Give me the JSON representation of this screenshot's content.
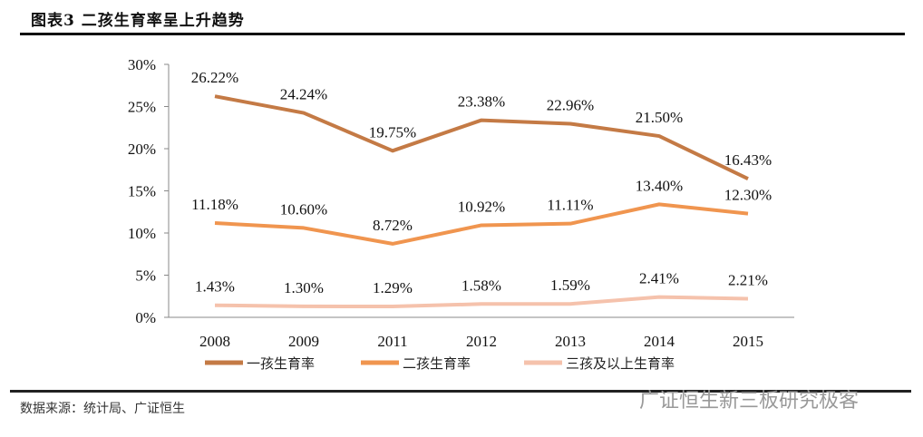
{
  "title": "图表3 二孩生育率呈上升趋势",
  "source": "数据来源：统计局、广证恒生",
  "watermark": "广证恒生新三板研究极客",
  "chart_data": {
    "type": "line",
    "categories": [
      "2008",
      "2009",
      "2011",
      "2012",
      "2013",
      "2014",
      "2015"
    ],
    "ylim": [
      0,
      30
    ],
    "yticks": [
      "0%",
      "5%",
      "10%",
      "15%",
      "20%",
      "25%",
      "30%"
    ],
    "ytick_values": [
      0,
      5,
      10,
      15,
      20,
      25,
      30
    ],
    "grid": false,
    "legend_placement": "bottom",
    "series": [
      {
        "name": "一孩生育率",
        "color": "#C47A45",
        "values": [
          26.22,
          24.24,
          19.75,
          23.38,
          22.96,
          21.5,
          16.43
        ],
        "labels": [
          "26.22%",
          "24.24%",
          "19.75%",
          "23.38%",
          "22.96%",
          "21.50%",
          "16.43%"
        ]
      },
      {
        "name": "二孩生育率",
        "color": "#F0954F",
        "values": [
          11.18,
          10.6,
          8.72,
          10.92,
          11.11,
          13.4,
          12.3
        ],
        "labels": [
          "11.18%",
          "10.60%",
          "8.72%",
          "10.92%",
          "11.11%",
          "13.40%",
          "12.30%"
        ]
      },
      {
        "name": "三孩及以上生育率",
        "color": "#F5C2AC",
        "values": [
          1.43,
          1.3,
          1.29,
          1.58,
          1.59,
          2.41,
          2.21
        ],
        "labels": [
          "1.43%",
          "1.30%",
          "1.29%",
          "1.58%",
          "1.59%",
          "2.41%",
          "2.21%"
        ]
      }
    ]
  }
}
